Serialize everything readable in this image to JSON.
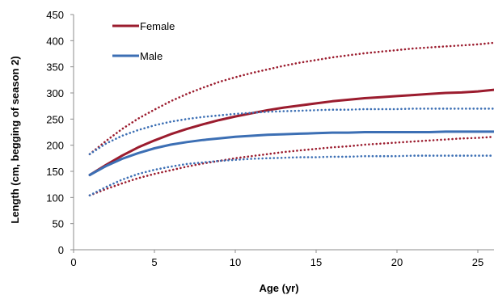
{
  "chart_data": {
    "type": "line",
    "title": "",
    "xlabel": "Age (yr)",
    "ylabel": "Length (cm, begging of season 2)",
    "xlim": [
      0,
      26
    ],
    "ylim": [
      0,
      450
    ],
    "x_ticks": [
      0,
      5,
      10,
      15,
      20,
      25
    ],
    "y_ticks": [
      0,
      50,
      100,
      150,
      200,
      250,
      300,
      350,
      400,
      450
    ],
    "grid": false,
    "legend_position": "top-left",
    "x": [
      1,
      2,
      3,
      4,
      5,
      6,
      7,
      8,
      9,
      10,
      11,
      12,
      13,
      14,
      15,
      16,
      17,
      18,
      19,
      20,
      21,
      22,
      23,
      24,
      25,
      26
    ],
    "series": [
      {
        "name": "Female",
        "role": "mean",
        "color": "#9B1C2E",
        "style": "solid",
        "values": [
          143,
          162,
          180,
          196,
          209,
          221,
          231,
          240,
          248,
          255,
          261,
          267,
          272,
          276,
          280,
          284,
          287,
          290,
          292,
          294,
          296,
          298,
          300,
          301,
          303,
          306
        ]
      },
      {
        "name": "Male",
        "role": "mean",
        "color": "#3C6FB4",
        "style": "solid",
        "values": [
          143,
          160,
          174,
          185,
          194,
          201,
          206,
          210,
          213,
          216,
          218,
          220,
          221,
          222,
          223,
          224,
          224,
          225,
          225,
          225,
          225,
          225,
          226,
          226,
          226,
          226
        ]
      },
      {
        "role": "upper-bound",
        "color": "#9B1C2E",
        "style": "dotted",
        "values": [
          183,
          208,
          231,
          251,
          268,
          284,
          298,
          310,
          321,
          330,
          338,
          345,
          352,
          358,
          363,
          368,
          372,
          376,
          379,
          382,
          385,
          387,
          389,
          391,
          393,
          396
        ]
      },
      {
        "role": "lower-bound",
        "color": "#9B1C2E",
        "style": "dotted",
        "values": [
          104,
          116,
          127,
          137,
          145,
          152,
          159,
          165,
          170,
          175,
          179,
          183,
          187,
          190,
          193,
          196,
          198,
          201,
          203,
          205,
          207,
          209,
          211,
          213,
          214,
          216
        ]
      },
      {
        "role": "upper-bound",
        "color": "#3C6FB4",
        "style": "dotted",
        "values": [
          183,
          203,
          218,
          229,
          238,
          245,
          250,
          254,
          257,
          260,
          262,
          264,
          265,
          266,
          267,
          268,
          268,
          269,
          269,
          269,
          270,
          270,
          270,
          270,
          270,
          270
        ]
      },
      {
        "role": "lower-bound",
        "color": "#3C6FB4",
        "style": "dotted",
        "values": [
          104,
          120,
          134,
          145,
          153,
          159,
          164,
          167,
          170,
          172,
          174,
          175,
          176,
          177,
          177,
          178,
          178,
          179,
          179,
          179,
          180,
          180,
          180,
          180,
          180,
          180
        ]
      }
    ],
    "legend": [
      "Female",
      "Male"
    ]
  }
}
